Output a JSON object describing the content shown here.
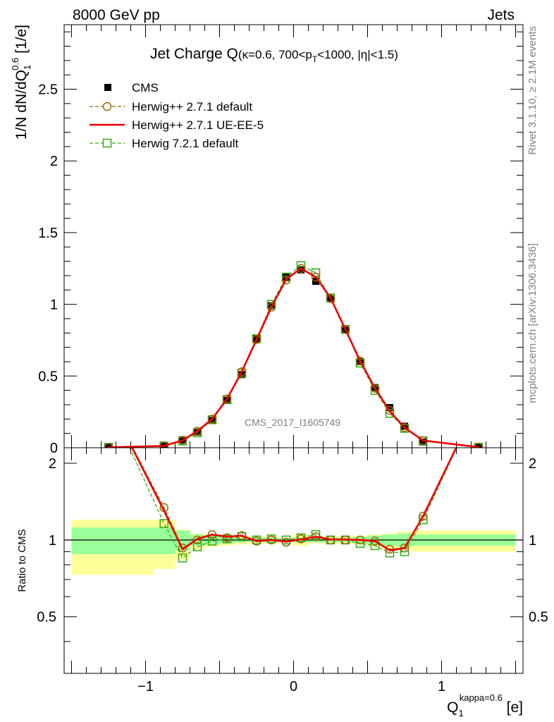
{
  "header": {
    "left": "8000 GeV pp",
    "right": "Jets",
    "side_top": "Rivet 3.1.10, ≥ 2.1M events",
    "side_bottom": "mcplots.cern.ch [arXiv:1306.3436]"
  },
  "chart_data": [
    {
      "type": "line",
      "panel": "main",
      "title": "Jet Charge Q",
      "title_sub": "(κ=0.6, 700<p",
      "title_sub_T": "T",
      "title_sub_rest": "<1000, |η|<1.5)",
      "watermark": "CMS_2017_I1605749",
      "ylabel": "1/N dN/dQ",
      "ylabel_sub": "1",
      "ylabel_sup": "0.6",
      "ylabel_unit": " [1/e]",
      "xlim": [
        -1.55,
        1.55
      ],
      "ylim": [
        0,
        2.95
      ],
      "yticks": [
        0,
        0.5,
        1,
        1.5,
        2,
        2.5
      ],
      "ytick_labels": [
        "0",
        "0.5",
        "1",
        "1.5",
        "2",
        "2.5"
      ],
      "legend": [
        "CMS",
        "Herwig++ 2.7.1 default",
        "Herwig++ 2.7.1 UE-EE-5",
        "Herwig 7.2.1 default"
      ],
      "x": [
        -1.25,
        -0.875,
        -0.75,
        -0.65,
        -0.55,
        -0.45,
        -0.35,
        -0.25,
        -0.15,
        -0.05,
        0.05,
        0.15,
        0.25,
        0.35,
        0.45,
        0.55,
        0.65,
        0.75,
        0.875,
        1.25
      ],
      "series": [
        {
          "name": "CMS",
          "values": [
            0.002,
            0.01,
            0.055,
            0.11,
            0.19,
            0.33,
            0.51,
            0.76,
            0.99,
            1.19,
            1.24,
            1.16,
            1.04,
            0.82,
            0.6,
            0.42,
            0.28,
            0.15,
            0.04,
            0.002
          ]
        },
        {
          "name": "Herwig++ 2.7.1 default",
          "values": [
            0.003,
            0.013,
            0.052,
            0.115,
            0.2,
            0.34,
            0.53,
            0.755,
            0.98,
            1.17,
            1.25,
            1.19,
            1.04,
            0.825,
            0.605,
            0.415,
            0.26,
            0.14,
            0.05,
            0.004
          ]
        },
        {
          "name": "Herwig++ 2.7.1 UE-EE-5",
          "values": [
            0.003,
            0.013,
            0.051,
            0.116,
            0.2,
            0.34,
            0.53,
            0.755,
            0.98,
            1.175,
            1.25,
            1.19,
            1.045,
            0.825,
            0.605,
            0.415,
            0.255,
            0.14,
            0.05,
            0.004
          ]
        },
        {
          "name": "Herwig 7.2.1 default",
          "values": [
            0.003,
            0.012,
            0.047,
            0.105,
            0.195,
            0.335,
            0.52,
            0.76,
            1.0,
            1.19,
            1.27,
            1.22,
            1.045,
            0.825,
            0.59,
            0.4,
            0.24,
            0.135,
            0.048,
            0.003
          ]
        }
      ]
    },
    {
      "type": "line",
      "panel": "ratio",
      "ylabel": "Ratio to CMS",
      "xlabel": "Q",
      "xlabel_sub": "1",
      "xlabel_sup": "kappa=0.6",
      "xlabel_unit": " [e]",
      "xlim": [
        -1.55,
        1.55
      ],
      "ylim": [
        0.3,
        2.3
      ],
      "xticks": [
        -1,
        0,
        1
      ],
      "xtick_labels": [
        "−1",
        "0",
        "1"
      ],
      "yticks": [
        0.5,
        1,
        2
      ],
      "ytick_labels": [
        "0.5",
        "1",
        "2"
      ],
      "bands": {
        "edges": [
          -1.5,
          -0.95,
          -0.8,
          -0.7,
          -0.6,
          -0.5,
          -0.4,
          -0.3,
          -0.2,
          -0.1,
          0.0,
          0.1,
          0.2,
          0.3,
          0.4,
          0.5,
          0.6,
          0.7,
          0.8,
          0.95,
          1.5
        ],
        "stat_lo": [
          0.88,
          0.88,
          0.91,
          0.95,
          0.96,
          0.97,
          0.98,
          0.98,
          0.98,
          0.99,
          0.98,
          0.98,
          0.98,
          0.98,
          0.97,
          0.96,
          0.95,
          0.94,
          0.95,
          0.95
        ],
        "stat_hi": [
          1.12,
          1.12,
          1.09,
          1.05,
          1.04,
          1.03,
          1.02,
          1.02,
          1.02,
          1.01,
          1.02,
          1.02,
          1.02,
          1.02,
          1.03,
          1.04,
          1.05,
          1.06,
          1.05,
          1.05
        ],
        "total_lo": [
          0.73,
          0.77,
          0.84,
          0.92,
          0.94,
          0.95,
          0.96,
          0.97,
          0.97,
          0.98,
          0.95,
          0.97,
          0.97,
          0.97,
          0.96,
          0.94,
          0.92,
          0.92,
          0.9,
          0.9
        ],
        "total_hi": [
          1.2,
          1.2,
          1.1,
          1.06,
          1.05,
          1.04,
          1.03,
          1.03,
          1.03,
          1.02,
          1.05,
          1.03,
          1.03,
          1.03,
          1.04,
          1.05,
          1.06,
          1.08,
          1.09,
          1.09
        ]
      },
      "x": [
        -1.25,
        -0.875,
        -0.75,
        -0.65,
        -0.55,
        -0.45,
        -0.35,
        -0.25,
        -0.15,
        -0.05,
        0.05,
        0.15,
        0.25,
        0.35,
        0.45,
        0.55,
        0.65,
        0.75,
        0.875,
        1.25
      ],
      "series": [
        {
          "name": "Herwig++ 2.7.1 default",
          "values": [
            3.5,
            1.34,
            0.93,
            1.0,
            1.05,
            1.02,
            1.04,
            0.99,
            1.0,
            0.98,
            1.01,
            1.03,
            1.0,
            1.0,
            1.0,
            0.99,
            0.92,
            0.93,
            1.24,
            3.5
          ]
        },
        {
          "name": "Herwig++ 2.7.1 UE-EE-5",
          "values": [
            3.5,
            1.3,
            0.92,
            1.01,
            1.05,
            1.03,
            1.04,
            0.99,
            1.0,
            0.985,
            1.005,
            1.03,
            1.005,
            1.005,
            1.0,
            0.99,
            0.91,
            0.93,
            1.24,
            3.5
          ]
        },
        {
          "name": "Herwig 7.2.1 default",
          "values": [
            3.5,
            1.16,
            0.85,
            0.94,
            0.99,
            1.01,
            1.03,
            1.0,
            1.01,
            1.0,
            1.02,
            1.05,
            1.0,
            1.0,
            0.97,
            0.95,
            0.89,
            0.9,
            1.2,
            3.5
          ]
        }
      ]
    }
  ]
}
